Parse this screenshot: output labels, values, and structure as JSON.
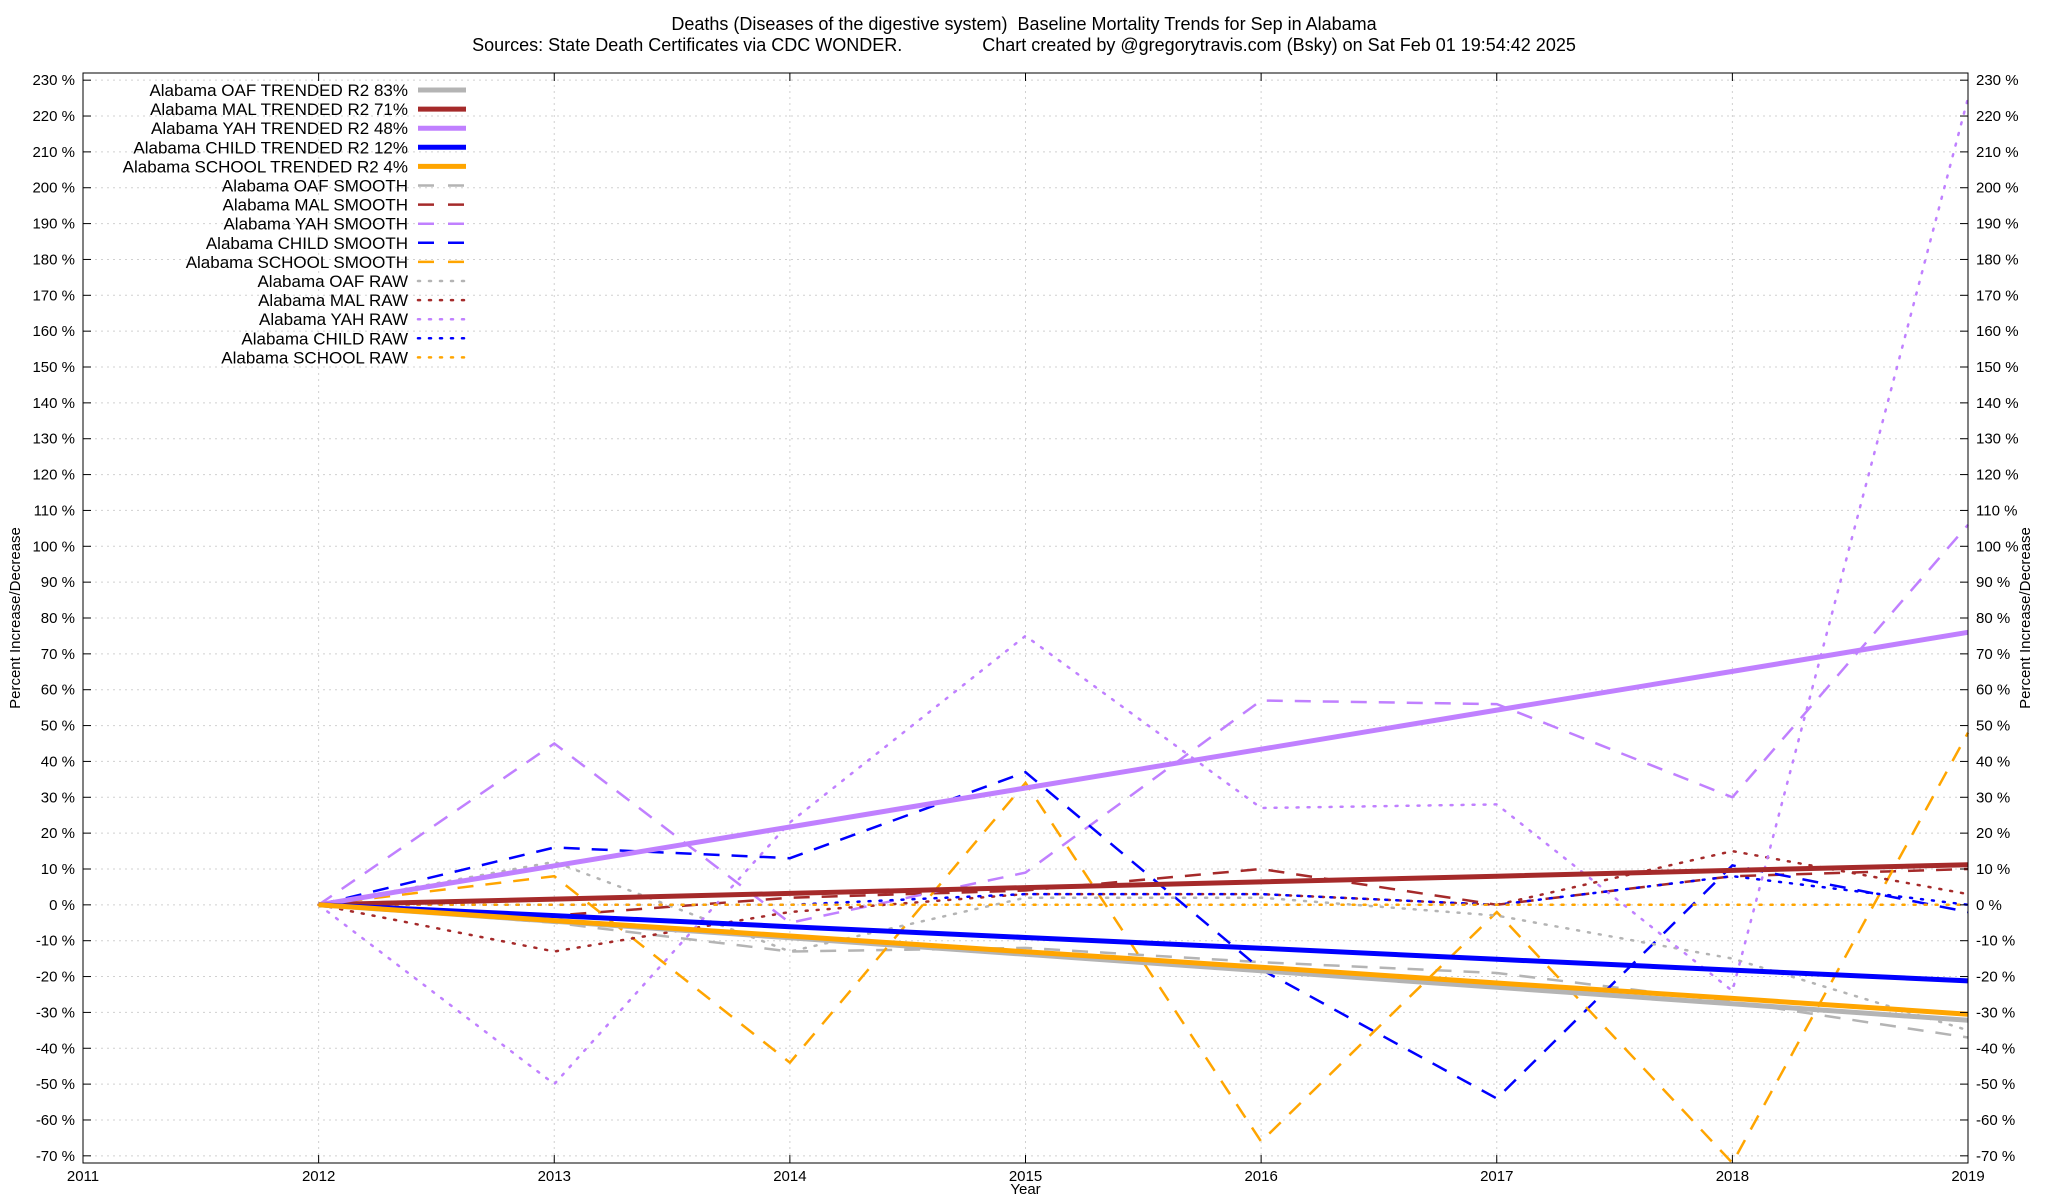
{
  "chart_data": {
    "type": "line",
    "title": "Deaths (Diseases of the digestive system)  Baseline Mortality Trends for Sep in Alabama",
    "subtitle": "Sources: State Death Certificates via CDC WONDER.                Chart created by @gregorytravis.com (Bsky) on Sat Feb 01 19:54:42 2025",
    "xlabel": "Year",
    "ylabel": "Percent Increase/Decrease",
    "y2label": "Percent Increase/Decrease",
    "xlim": [
      2011,
      2019
    ],
    "ylim": [
      -72,
      232
    ],
    "x_ticks": [
      "2011",
      "2012",
      "2013",
      "2014",
      "2015",
      "2016",
      "2017",
      "2018",
      "2019"
    ],
    "y_ticks": [
      "230 %",
      "220 %",
      "210 %",
      "200 %",
      "190 %",
      "180 %",
      "170 %",
      "160 %",
      "150 %",
      "140 %",
      "130 %",
      "120 %",
      "110 %",
      "100 %",
      "90 %",
      "80 %",
      "70 %",
      "60 %",
      "50 %",
      "40 %",
      "30 %",
      "20 %",
      "10 %",
      "0 %",
      "-10 %",
      "-20 %",
      "-30 %",
      "-40 %",
      "-50 %",
      "-60 %",
      "-70 %"
    ],
    "grid": true,
    "legend_position": "top-left",
    "x": [
      2012,
      2013,
      2014,
      2015,
      2016,
      2017,
      2018,
      2019
    ],
    "series": [
      {
        "name": "Alabama OAF TRENDED R2  83%",
        "color": "#b4b4b4",
        "style": "solid",
        "values": [
          0,
          -4.6,
          -9.2,
          -13.8,
          -18.4,
          -23.0,
          -27.6,
          -32.2
        ]
      },
      {
        "name": "Alabama MAL TRENDED R2  71%",
        "color": "#a52a2a",
        "style": "solid",
        "values": [
          0,
          1.6,
          3.2,
          4.8,
          6.4,
          8.0,
          9.6,
          11.2
        ]
      },
      {
        "name": "Alabama YAH TRENDED R2  48%",
        "color": "#c080ff",
        "style": "solid",
        "values": [
          0,
          10.9,
          21.7,
          32.6,
          43.4,
          54.3,
          65.1,
          76.0
        ]
      },
      {
        "name": "Alabama CHILD TRENDED R2  12%",
        "color": "#0000ff",
        "style": "solid",
        "values": [
          0,
          -3.0,
          -6.1,
          -9.1,
          -12.1,
          -15.2,
          -18.2,
          -21.2
        ]
      },
      {
        "name": "Alabama SCHOOL TRENDED R2  4%",
        "color": "#ffa500",
        "style": "solid",
        "values": [
          0,
          -4.4,
          -8.7,
          -13.1,
          -17.4,
          -21.8,
          -26.1,
          -30.5
        ]
      },
      {
        "name": "Alabama OAF SMOOTH",
        "color": "#b4b4b4",
        "style": "dashed",
        "values": [
          0,
          -5,
          -13,
          -12,
          -16,
          -19,
          -27,
          -37
        ]
      },
      {
        "name": "Alabama MAL SMOOTH",
        "color": "#a52a2a",
        "style": "dashed",
        "values": [
          0,
          -3,
          2,
          4,
          10,
          0,
          8,
          10
        ]
      },
      {
        "name": "Alabama YAH SMOOTH",
        "color": "#c080ff",
        "style": "dashed",
        "values": [
          0,
          45,
          -5,
          9,
          57,
          56,
          30,
          106
        ]
      },
      {
        "name": "Alabama CHILD SMOOTH",
        "color": "#0000ff",
        "style": "dashed",
        "values": [
          0,
          16,
          13,
          37,
          -18,
          -54,
          11,
          -2
        ]
      },
      {
        "name": "Alabama SCHOOL SMOOTH",
        "color": "#ffa500",
        "style": "dashed",
        "values": [
          0,
          8,
          -44,
          34,
          -66,
          -2,
          -72,
          48
        ]
      },
      {
        "name": "Alabama OAF RAW",
        "color": "#b4b4b4",
        "style": "dotted",
        "values": [
          0,
          12,
          -13,
          2,
          2,
          -3,
          -15,
          -35
        ]
      },
      {
        "name": "Alabama MAL RAW",
        "color": "#a52a2a",
        "style": "dotted",
        "values": [
          0,
          -13,
          -2,
          3,
          3,
          0,
          15,
          3
        ]
      },
      {
        "name": "Alabama YAH RAW",
        "color": "#c080ff",
        "style": "dotted",
        "values": [
          0,
          -50,
          23,
          75,
          27,
          28,
          -24,
          225
        ]
      },
      {
        "name": "Alabama CHILD RAW",
        "color": "#0000ff",
        "style": "dotted",
        "values": [
          0,
          0,
          0,
          3,
          3,
          0,
          8,
          0
        ]
      },
      {
        "name": "Alabama SCHOOL RAW",
        "color": "#ffa500",
        "style": "dotted",
        "values": [
          0,
          0,
          0,
          0,
          0,
          0,
          0,
          0
        ]
      }
    ]
  }
}
